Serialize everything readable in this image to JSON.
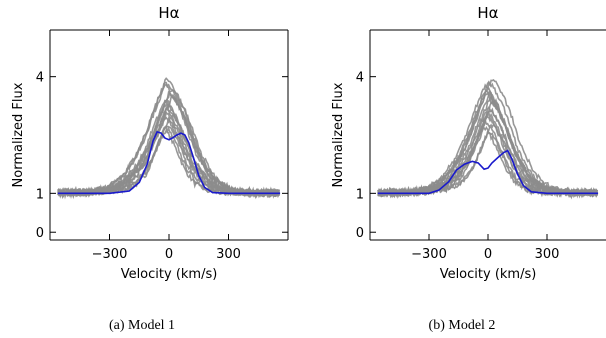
{
  "chart_data": [
    {
      "type": "line",
      "title": "Hα",
      "caption": "(a) Model 1",
      "xlabel": "Velocity (km/s)",
      "ylabel": "Normalized Flux",
      "xlim": [
        -600,
        600
      ],
      "ylim": [
        -0.2,
        5.2
      ],
      "x_ticks": [
        -300,
        0,
        300
      ],
      "y_ticks": [
        0,
        1,
        4
      ],
      "grid": false,
      "legend": "none",
      "observed_color": "#8c8c8c",
      "model_color": "#1a1acc",
      "observed_envelope": {
        "x": [
          -560,
          -400,
          -300,
          -220,
          -150,
          -100,
          -60,
          -20,
          0,
          20,
          60,
          100,
          150,
          220,
          300,
          400,
          560
        ],
        "y_min": [
          1.0,
          1.0,
          1.02,
          1.08,
          1.2,
          1.45,
          1.9,
          2.4,
          2.6,
          2.5,
          2.1,
          1.6,
          1.25,
          1.05,
          1.0,
          1.0,
          1.0
        ],
        "y_max": [
          1.03,
          1.05,
          1.15,
          1.45,
          2.0,
          2.6,
          3.2,
          3.7,
          3.95,
          3.85,
          3.5,
          3.0,
          2.2,
          1.5,
          1.15,
          1.04,
          1.03
        ]
      },
      "model": {
        "x": [
          -560,
          -300,
          -200,
          -150,
          -110,
          -80,
          -60,
          -40,
          -20,
          0,
          20,
          40,
          60,
          80,
          100,
          130,
          150,
          180,
          220,
          300,
          560
        ],
        "y": [
          1.0,
          1.0,
          1.06,
          1.28,
          1.75,
          2.35,
          2.58,
          2.55,
          2.42,
          2.38,
          2.43,
          2.5,
          2.55,
          2.5,
          2.3,
          1.8,
          1.45,
          1.15,
          1.02,
          1.0,
          1.0
        ]
      }
    },
    {
      "type": "line",
      "title": "Hα",
      "caption": "(b) Model 2",
      "xlabel": "Velocity (km/s)",
      "ylabel": "Normalized Flux",
      "xlim": [
        -600,
        600
      ],
      "ylim": [
        -0.2,
        5.2
      ],
      "x_ticks": [
        -300,
        0,
        300
      ],
      "y_ticks": [
        0,
        1,
        4
      ],
      "grid": false,
      "legend": "none",
      "observed_color": "#8c8c8c",
      "model_color": "#1a1acc",
      "observed_envelope": {
        "x": [
          -560,
          -400,
          -300,
          -220,
          -150,
          -100,
          -60,
          -20,
          0,
          20,
          60,
          100,
          150,
          220,
          300,
          400,
          560
        ],
        "y_min": [
          1.0,
          1.0,
          1.02,
          1.08,
          1.2,
          1.45,
          1.9,
          2.4,
          2.6,
          2.5,
          2.1,
          1.6,
          1.25,
          1.05,
          1.0,
          1.0,
          1.0
        ],
        "y_max": [
          1.03,
          1.05,
          1.15,
          1.45,
          2.0,
          2.6,
          3.2,
          3.7,
          3.95,
          3.85,
          3.5,
          3.0,
          2.2,
          1.5,
          1.15,
          1.04,
          1.03
        ]
      },
      "model": {
        "x": [
          -560,
          -300,
          -250,
          -200,
          -160,
          -120,
          -80,
          -50,
          -20,
          0,
          20,
          50,
          80,
          100,
          120,
          150,
          180,
          220,
          300,
          560
        ],
        "y": [
          1.0,
          1.0,
          1.08,
          1.3,
          1.6,
          1.75,
          1.82,
          1.78,
          1.62,
          1.65,
          1.78,
          1.92,
          2.05,
          2.1,
          1.9,
          1.5,
          1.2,
          1.04,
          1.0,
          1.0
        ]
      }
    }
  ]
}
